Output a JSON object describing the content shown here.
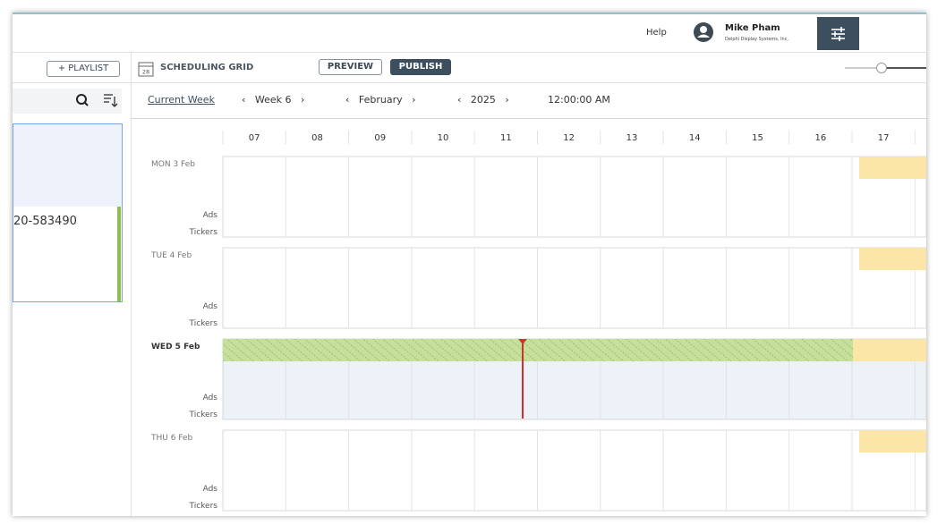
{
  "header": {
    "help": "Help",
    "user_name": "Mike Pham",
    "company": "Delphi Display Systems, Inc."
  },
  "sidebar": {
    "add_button": "+ PLAYLIST",
    "item_label": "20-583490"
  },
  "toolbar": {
    "calendar_day": "28",
    "title": "SCHEDULING GRID",
    "preview": "PREVIEW",
    "publish": "PUBLISH"
  },
  "nav": {
    "current_week": "Current Week",
    "week": "Week 6",
    "month": "February",
    "year": "2025",
    "time": "12:00:00 AM"
  },
  "grid": {
    "hours": [
      "07",
      "08",
      "09",
      "10",
      "11",
      "12",
      "13",
      "14",
      "15",
      "16",
      "17"
    ],
    "days": [
      "MON 3 Feb",
      "TUE 4 Feb",
      "WED 5 Feb",
      "THU 6 Feb"
    ],
    "row_labels": [
      "Ads",
      "Tickers"
    ]
  }
}
